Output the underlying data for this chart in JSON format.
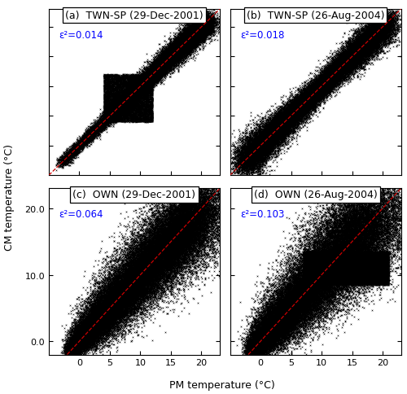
{
  "panels": [
    {
      "label": "(a)  TWN-SP (29-Dec-2001)",
      "epsilon": "ε²=0.014",
      "row": 0,
      "col": 0,
      "xlim": [
        -5,
        23
      ],
      "ylim": [
        -5,
        23
      ],
      "show_xticklabels": false,
      "show_yticklabels": false,
      "xticks": [
        0,
        5,
        10,
        15,
        20
      ],
      "yticks": [
        0,
        5,
        10,
        15,
        20
      ]
    },
    {
      "label": "(b)  TWN-SP (26-Aug-2004)",
      "epsilon": "ε²=0.018",
      "row": 0,
      "col": 1,
      "xlim": [
        -5,
        23
      ],
      "ylim": [
        -5,
        23
      ],
      "show_xticklabels": false,
      "show_yticklabels": false,
      "xticks": [
        0,
        5,
        10,
        15,
        20
      ],
      "yticks": [
        0,
        5,
        10,
        15,
        20
      ]
    },
    {
      "label": "(c)  OWN (29-Dec-2001)",
      "epsilon": "ε²=0.064",
      "row": 1,
      "col": 0,
      "xlim": [
        -5,
        23
      ],
      "ylim": [
        -2,
        23
      ],
      "show_xticklabels": true,
      "show_yticklabels": true,
      "xticks": [
        0,
        5,
        10,
        15,
        20
      ],
      "yticks": [
        0.0,
        10.0,
        20.0
      ]
    },
    {
      "label": "(d)  OWN (26-Aug-2004)",
      "epsilon": "ε²=0.103",
      "row": 1,
      "col": 1,
      "xlim": [
        -5,
        23
      ],
      "ylim": [
        -2,
        23
      ],
      "show_xticklabels": true,
      "show_yticklabels": false,
      "xticks": [
        0,
        5,
        10,
        15,
        20
      ],
      "yticks": [
        0.0,
        10.0,
        20.0
      ]
    }
  ],
  "xlabel": "PM temperature (°C)",
  "ylabel": "CM temperature (°C)",
  "scatter_color": "black",
  "scatter_marker": "x",
  "scatter_size": 1.5,
  "scatter_linewidth": 0.4,
  "line_color": "#cc0000",
  "line_style": "--",
  "line_width": 0.9,
  "epsilon_color": "blue",
  "epsilon_fontsize": 8.5,
  "label_fontsize": 9,
  "tick_fontsize": 8,
  "axis_label_fontsize": 9
}
